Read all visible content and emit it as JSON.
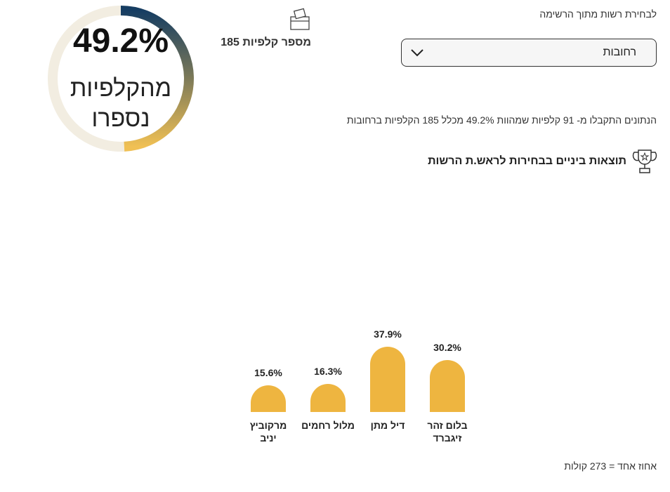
{
  "header": {
    "select_label": "לבחירת רשות מתוך הרשימה",
    "select_value": "רחובות",
    "ballot_label": "מספר קלפיות",
    "ballot_count": 185
  },
  "ring": {
    "value": 49.2,
    "label": "49.2%",
    "caption_lines": [
      "מהקלפיות",
      "נספרו"
    ]
  },
  "info": "הנתונים התקבלו מ- 91 קלפיות שמהוות 49.2% מכלל 185 הקלפיות ברחובות",
  "chart_data": {
    "type": "bar",
    "title": "תוצאות ביניים בבחירות לראש.ת הרשות",
    "categories": [
      "בלום זהר זיגברד",
      "דיל מתן",
      "מלול רחמים",
      "מרקוביץ יניב"
    ],
    "values": [
      30.2,
      37.9,
      16.3,
      15.6
    ],
    "value_labels": [
      "30.2%",
      "37.9%",
      "16.3%",
      "15.6%"
    ],
    "color": "#eeb540"
  },
  "footnote": "אחוז אחד = 273 קולות"
}
